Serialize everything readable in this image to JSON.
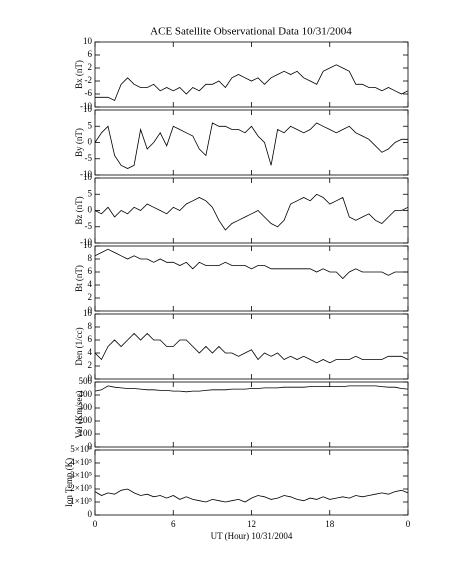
{
  "chart_data": [
    {
      "type": "line",
      "title": "ACE Satellite Observational Data   10/31/2004",
      "ylabel": "Bx (nT)",
      "color": "#000000",
      "x": [
        0,
        0.5,
        1,
        1.5,
        2,
        2.5,
        3,
        3.5,
        4,
        4.5,
        5,
        5.5,
        6,
        6.5,
        7,
        7.5,
        8,
        8.5,
        9,
        9.5,
        10,
        10.5,
        11,
        11.5,
        12,
        12.5,
        13,
        13.5,
        14,
        14.5,
        15,
        15.5,
        16,
        16.5,
        17,
        17.5,
        18,
        18.5,
        19,
        19.5,
        20,
        20.5,
        21,
        21.5,
        22,
        22.5,
        23,
        23.5,
        24
      ],
      "values": [
        -7,
        -7,
        -7,
        -8,
        -3,
        -1,
        -3,
        -4,
        -4,
        -3,
        -5,
        -4,
        -5,
        -4,
        -6,
        -4,
        -5,
        -3,
        -3,
        -2,
        -4,
        -1,
        0,
        -1,
        -2,
        -1,
        -3,
        -1,
        0,
        1,
        0,
        1,
        -1,
        -2,
        -3,
        1,
        2,
        3,
        2,
        1,
        -3,
        -3,
        -4,
        -4,
        -5,
        -4,
        -5,
        -6,
        -5
      ],
      "xlim": [
        0,
        24
      ],
      "ylim": [
        -10,
        10
      ],
      "yticks": [
        -10,
        -6,
        -2,
        2,
        6,
        10
      ]
    },
    {
      "type": "line",
      "ylabel": "By (nT)",
      "color": "#000000",
      "x": [
        0,
        0.5,
        1,
        1.5,
        2,
        2.5,
        3,
        3.5,
        4,
        4.5,
        5,
        5.5,
        6,
        6.5,
        7,
        7.5,
        8,
        8.5,
        9,
        9.5,
        10,
        10.5,
        11,
        11.5,
        12,
        12.5,
        13,
        13.5,
        14,
        14.5,
        15,
        15.5,
        16,
        16.5,
        17,
        17.5,
        18,
        18.5,
        19,
        19.5,
        20,
        20.5,
        21,
        21.5,
        22,
        22.5,
        23,
        23.5,
        24
      ],
      "values": [
        0,
        3,
        5,
        -4,
        -7,
        -8,
        -7,
        4,
        -2,
        0,
        3,
        -1,
        5,
        4,
        3,
        2,
        -2,
        -4,
        6,
        5,
        5,
        4,
        4,
        3,
        5,
        2,
        0,
        -7,
        4,
        3,
        5,
        4,
        3,
        4,
        6,
        5,
        4,
        3,
        4,
        5,
        3,
        2,
        1,
        -1,
        -3,
        -2,
        0,
        1,
        1
      ],
      "xlim": [
        0,
        24
      ],
      "ylim": [
        -10,
        10
      ],
      "yticks": [
        -10,
        -5,
        0,
        5,
        10
      ]
    },
    {
      "type": "line",
      "ylabel": "Bz (nT)",
      "color": "#000000",
      "x": [
        0,
        0.5,
        1,
        1.5,
        2,
        2.5,
        3,
        3.5,
        4,
        4.5,
        5,
        5.5,
        6,
        6.5,
        7,
        7.5,
        8,
        8.5,
        9,
        9.5,
        10,
        10.5,
        11,
        11.5,
        12,
        12.5,
        13,
        13.5,
        14,
        14.5,
        15,
        15.5,
        16,
        16.5,
        17,
        17.5,
        18,
        18.5,
        19,
        19.5,
        20,
        20.5,
        21,
        21.5,
        22,
        22.5,
        23,
        23.5,
        24
      ],
      "values": [
        0,
        -1,
        1,
        -2,
        0,
        -1,
        1,
        0,
        2,
        1,
        0,
        -1,
        1,
        0,
        2,
        3,
        4,
        3,
        1,
        -3,
        -6,
        -4,
        -3,
        -2,
        -1,
        0,
        -2,
        -4,
        -5,
        -3,
        2,
        3,
        4,
        3,
        5,
        4,
        2,
        3,
        4,
        -2,
        -3,
        -2,
        -1,
        -3,
        -4,
        -2,
        0,
        0,
        1
      ],
      "xlim": [
        0,
        24
      ],
      "ylim": [
        -10,
        10
      ],
      "yticks": [
        -10,
        -5,
        0,
        5,
        10
      ]
    },
    {
      "type": "line",
      "ylabel": "Bt (nT)",
      "color": "#000000",
      "x": [
        0,
        0.5,
        1,
        1.5,
        2,
        2.5,
        3,
        3.5,
        4,
        4.5,
        5,
        5.5,
        6,
        6.5,
        7,
        7.5,
        8,
        8.5,
        9,
        9.5,
        10,
        10.5,
        11,
        11.5,
        12,
        12.5,
        13,
        13.5,
        14,
        14.5,
        15,
        15.5,
        16,
        16.5,
        17,
        17.5,
        18,
        18.5,
        19,
        19.5,
        20,
        20.5,
        21,
        21.5,
        22,
        22.5,
        23,
        23.5,
        24
      ],
      "values": [
        8.5,
        9,
        9.5,
        9,
        8.5,
        8,
        8.5,
        8,
        8,
        7.5,
        8,
        7.5,
        7.5,
        7,
        7.5,
        6.5,
        7.5,
        7,
        7,
        7,
        7.5,
        7,
        7,
        7,
        6.5,
        7,
        7,
        6.5,
        6.5,
        6.5,
        6.5,
        6.5,
        6.5,
        6.5,
        6,
        6.5,
        6,
        6,
        5,
        6,
        6.5,
        6,
        6,
        6,
        6,
        5.5,
        6,
        6,
        6
      ],
      "xlim": [
        0,
        24
      ],
      "ylim": [
        0,
        10
      ],
      "yticks": [
        0,
        2,
        4,
        6,
        8,
        10
      ]
    },
    {
      "type": "line",
      "ylabel": "Den (1/cc)",
      "color": "#000000",
      "x": [
        0,
        0.5,
        1,
        1.5,
        2,
        2.5,
        3,
        3.5,
        4,
        4.5,
        5,
        5.5,
        6,
        6.5,
        7,
        7.5,
        8,
        8.5,
        9,
        9.5,
        10,
        10.5,
        11,
        11.5,
        12,
        12.5,
        13,
        13.5,
        14,
        14.5,
        15,
        15.5,
        16,
        16.5,
        17,
        17.5,
        18,
        18.5,
        19,
        19.5,
        20,
        20.5,
        21,
        21.5,
        22,
        22.5,
        23,
        23.5,
        24
      ],
      "values": [
        4,
        3,
        5,
        6,
        5,
        6,
        7,
        6,
        7,
        6,
        6,
        5,
        5,
        6,
        6,
        5,
        4,
        5,
        4,
        5,
        4,
        4,
        3.5,
        4,
        4.5,
        3,
        4,
        3.5,
        4,
        3,
        3.5,
        3,
        3.5,
        3,
        2.5,
        3,
        2.5,
        3,
        3,
        3,
        3.5,
        3,
        3,
        3,
        3,
        3.5,
        3.5,
        3.5,
        3
      ],
      "xlim": [
        0,
        24
      ],
      "ylim": [
        0,
        10
      ],
      "yticks": [
        0,
        2,
        4,
        6,
        8,
        10
      ]
    },
    {
      "type": "line",
      "ylabel": "Vel (Km/sec)",
      "color": "#000000",
      "x": [
        0,
        0.5,
        1,
        1.5,
        2,
        2.5,
        3,
        3.5,
        4,
        4.5,
        5,
        5.5,
        6,
        6.5,
        7,
        7.5,
        8,
        8.5,
        9,
        9.5,
        10,
        10.5,
        11,
        11.5,
        12,
        12.5,
        13,
        13.5,
        14,
        14.5,
        15,
        15.5,
        16,
        16.5,
        17,
        17.5,
        18,
        18.5,
        19,
        19.5,
        20,
        20.5,
        21,
        21.5,
        22,
        22.5,
        23,
        23.5,
        24
      ],
      "values": [
        430,
        440,
        470,
        460,
        455,
        450,
        450,
        445,
        440,
        440,
        435,
        435,
        430,
        430,
        425,
        430,
        430,
        435,
        440,
        440,
        440,
        445,
        445,
        445,
        450,
        450,
        455,
        455,
        455,
        460,
        460,
        460,
        460,
        465,
        465,
        465,
        465,
        465,
        465,
        470,
        470,
        470,
        470,
        470,
        465,
        460,
        460,
        450,
        445
      ],
      "xlim": [
        0,
        24
      ],
      "ylim": [
        0,
        500
      ],
      "yticks": [
        0,
        100,
        200,
        300,
        400,
        500
      ]
    },
    {
      "type": "line",
      "ylabel": "Ion Temp (K)",
      "xlabel": "UT (Hour)  10/31/2004",
      "color": "#000000",
      "x": [
        0,
        0.5,
        1,
        1.5,
        2,
        2.5,
        3,
        3.5,
        4,
        4.5,
        5,
        5.5,
        6,
        6.5,
        7,
        7.5,
        8,
        8.5,
        9,
        9.5,
        10,
        10.5,
        11,
        11.5,
        12,
        12.5,
        13,
        13.5,
        14,
        14.5,
        15,
        15.5,
        16,
        16.5,
        17,
        17.5,
        18,
        18.5,
        19,
        19.5,
        20,
        20.5,
        21,
        21.5,
        22,
        22.5,
        23,
        23.5,
        24
      ],
      "values": [
        180000,
        150000,
        170000,
        160000,
        190000,
        200000,
        170000,
        150000,
        160000,
        140000,
        150000,
        130000,
        150000,
        120000,
        140000,
        120000,
        110000,
        100000,
        120000,
        110000,
        100000,
        110000,
        120000,
        100000,
        130000,
        150000,
        140000,
        120000,
        130000,
        150000,
        140000,
        120000,
        110000,
        130000,
        120000,
        140000,
        120000,
        130000,
        140000,
        130000,
        150000,
        140000,
        150000,
        160000,
        170000,
        160000,
        180000,
        190000,
        170000
      ],
      "xlim": [
        0,
        24
      ],
      "ylim": [
        0,
        500000
      ],
      "yticks": [
        0,
        {
          "value": 100000,
          "label": "1×10⁵"
        },
        {
          "value": 200000,
          "label": "2×10⁵"
        },
        {
          "value": 300000,
          "label": "3×10⁵"
        },
        {
          "value": 400000,
          "label": "4×10⁵"
        },
        {
          "value": 500000,
          "label": "5×10⁵"
        }
      ],
      "xticks": [
        0,
        6,
        12,
        18,
        {
          "value": 24,
          "label": "0"
        }
      ]
    }
  ]
}
